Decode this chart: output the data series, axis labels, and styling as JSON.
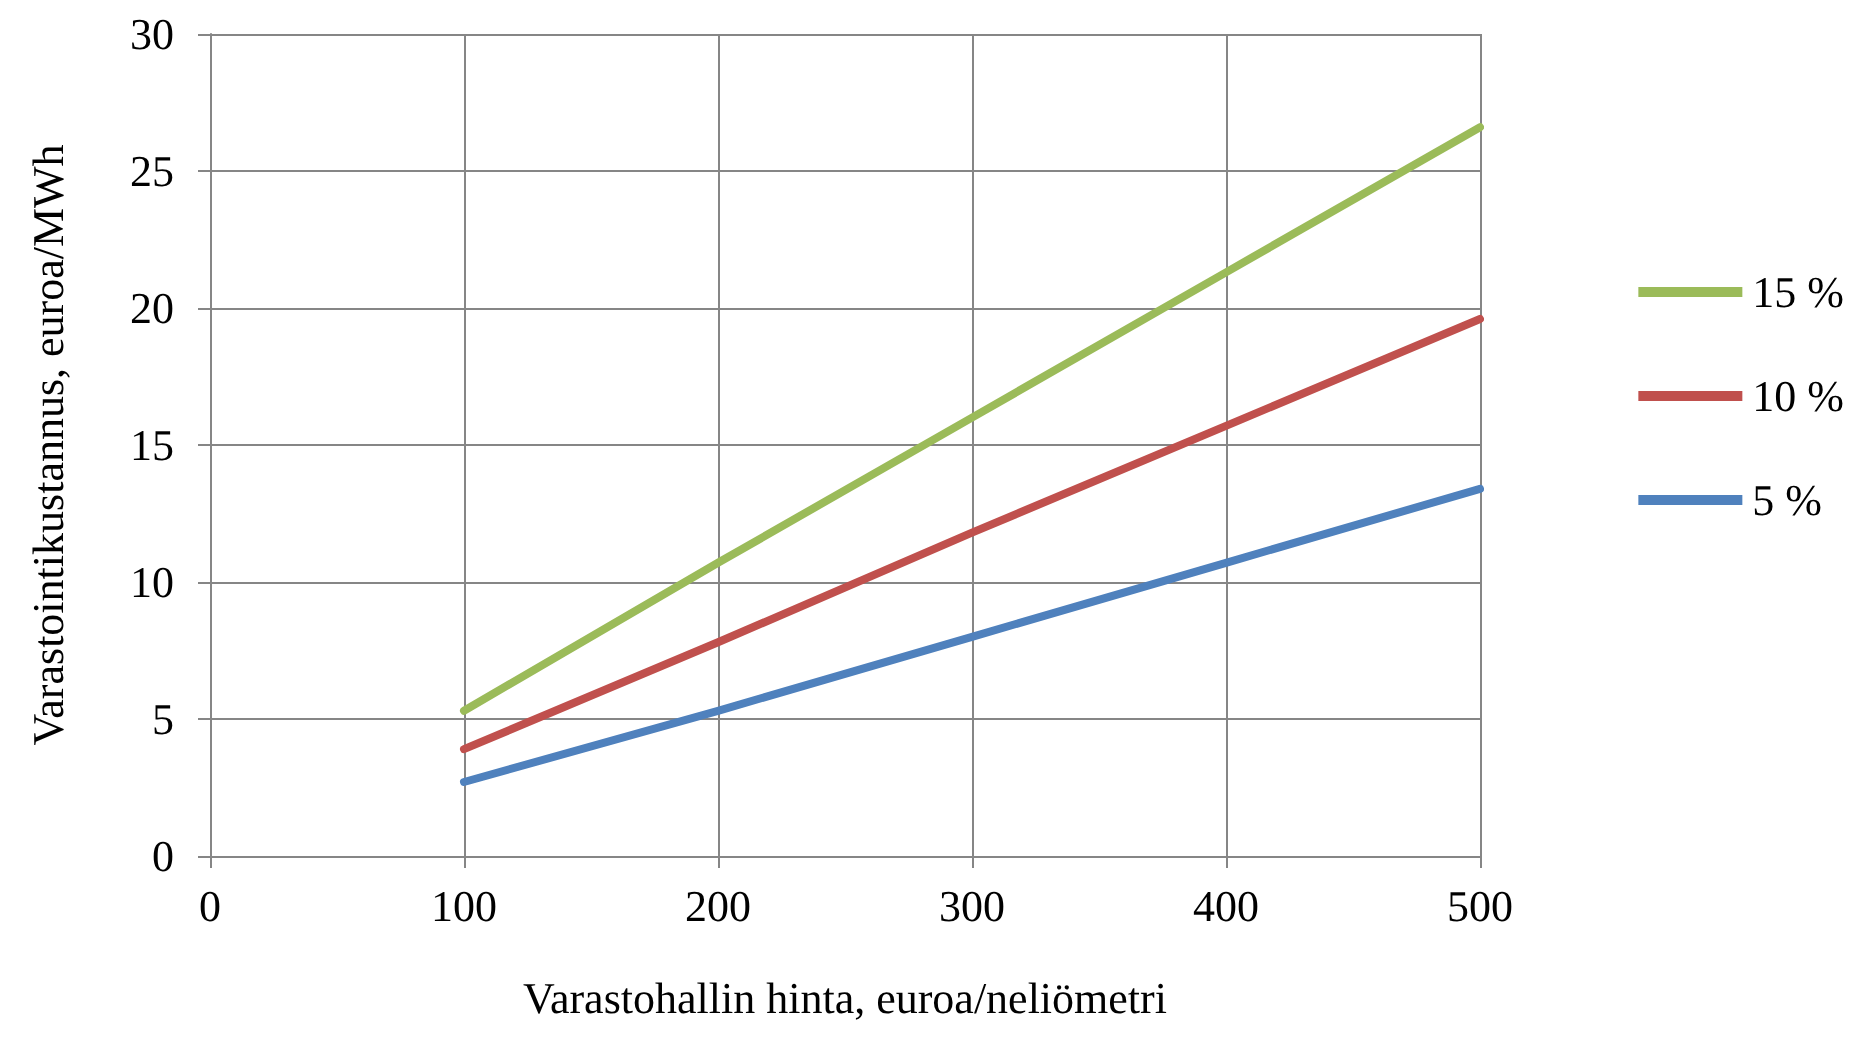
{
  "chart_data": {
    "type": "line",
    "xlabel": "Varastohallin hinta, euroa/neliömetri",
    "ylabel": "Varastointikustannus, euroa/MWh",
    "x": [
      100,
      200,
      300,
      400,
      500
    ],
    "series": [
      {
        "name": "15 %",
        "color": "#9bbb59",
        "values": [
          5.3,
          10.7,
          16.0,
          21.3,
          26.6
        ]
      },
      {
        "name": "10 %",
        "color": "#c0504d",
        "values": [
          3.9,
          7.8,
          11.8,
          15.7,
          19.6
        ]
      },
      {
        "name": "5 %",
        "color": "#4f81bd",
        "values": [
          2.7,
          5.3,
          8.0,
          10.7,
          13.4
        ]
      }
    ],
    "xlim": [
      0,
      500
    ],
    "xticks": [
      0,
      100,
      200,
      300,
      400,
      500
    ],
    "ylim": [
      0,
      30
    ],
    "yticks": [
      0,
      5,
      10,
      15,
      20,
      25,
      30
    ],
    "grid": true,
    "legend": "right",
    "marker": "none",
    "line_style": "solid"
  }
}
